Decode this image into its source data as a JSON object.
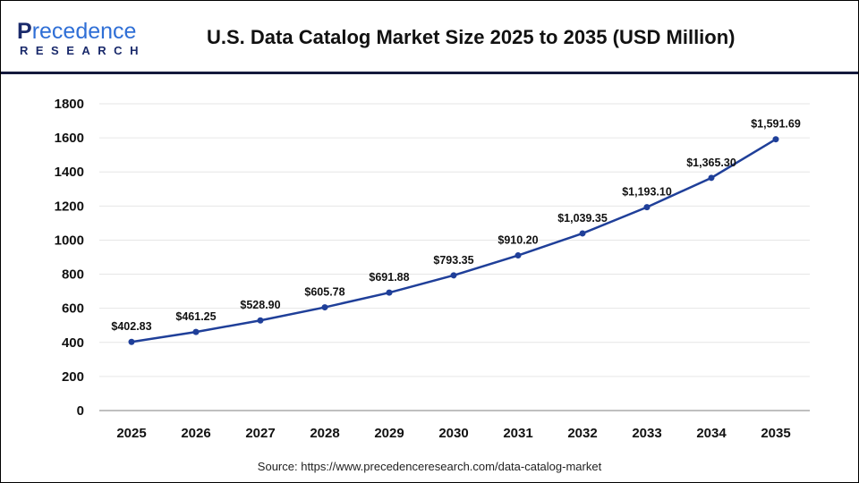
{
  "logo": {
    "text_top": "Precedence",
    "text_bottom": "RESEARCH"
  },
  "header": {
    "title": "U.S. Data Catalog Market Size 2025 to 2035 (USD Million)"
  },
  "source": "Source: https://www.precedenceresearch.com/data-catalog-market",
  "colors": {
    "line": "#1f3f99",
    "header_rule": "#141a3d",
    "grid": "#e6e6e6"
  },
  "chart_data": {
    "type": "line",
    "title": "U.S. Data Catalog Market Size 2025 to 2035 (USD Million)",
    "categories": [
      "2025",
      "2026",
      "2027",
      "2028",
      "2029",
      "2030",
      "2031",
      "2032",
      "2033",
      "2034",
      "2035"
    ],
    "series": [
      {
        "values": [
          402.83,
          461.25,
          528.9,
          605.78,
          691.88,
          793.35,
          910.2,
          1039.35,
          1193.1,
          1365.3,
          1591.69
        ],
        "labels": [
          "$402.83",
          "$461.25",
          "$528.90",
          "$605.78",
          "$691.88",
          "$793.35",
          "$910.20",
          "$1,039.35",
          "$1,193.10",
          "$1,365.30",
          "$1,591.69"
        ]
      }
    ],
    "yticks": [
      "0",
      "200",
      "400",
      "600",
      "800",
      "1000",
      "1200",
      "1400",
      "1600",
      "1800"
    ],
    "ylim": [
      0,
      1800
    ],
    "grid": true,
    "legend": "none"
  }
}
